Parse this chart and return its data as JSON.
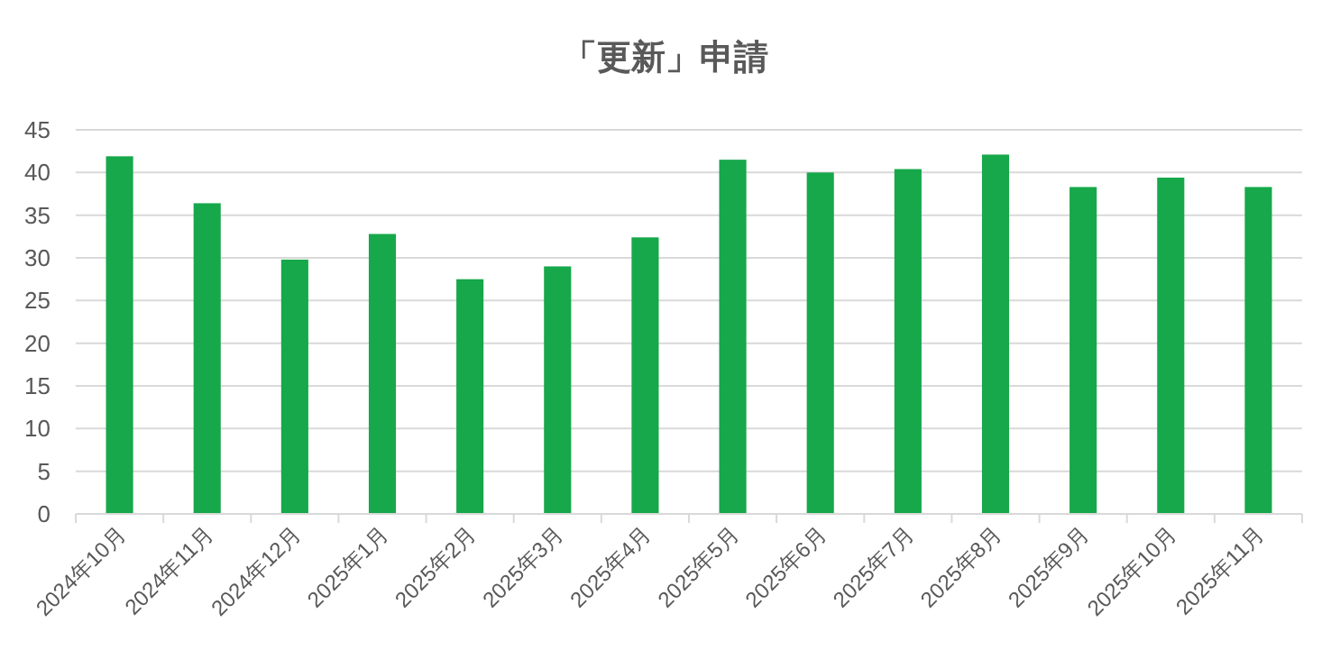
{
  "chart_data": {
    "type": "bar",
    "title": "「更新」申請",
    "categories": [
      "2024年10月",
      "2024年11月",
      "2024年12月",
      "2025年1月",
      "2025年2月",
      "2025年3月",
      "2025年4月",
      "2025年5月",
      "2025年6月",
      "2025年7月",
      "2025年8月",
      "2025年9月",
      "2025年10月",
      "2025年11月"
    ],
    "values": [
      41.9,
      36.4,
      29.8,
      32.8,
      27.5,
      29.0,
      32.4,
      41.5,
      40.0,
      40.4,
      42.1,
      38.3,
      39.4,
      38.3
    ],
    "color": "#16a84a",
    "ylim": [
      0,
      45
    ],
    "yticks": [
      0,
      5,
      10,
      15,
      20,
      25,
      30,
      35,
      40,
      45
    ],
    "grid": "y"
  }
}
